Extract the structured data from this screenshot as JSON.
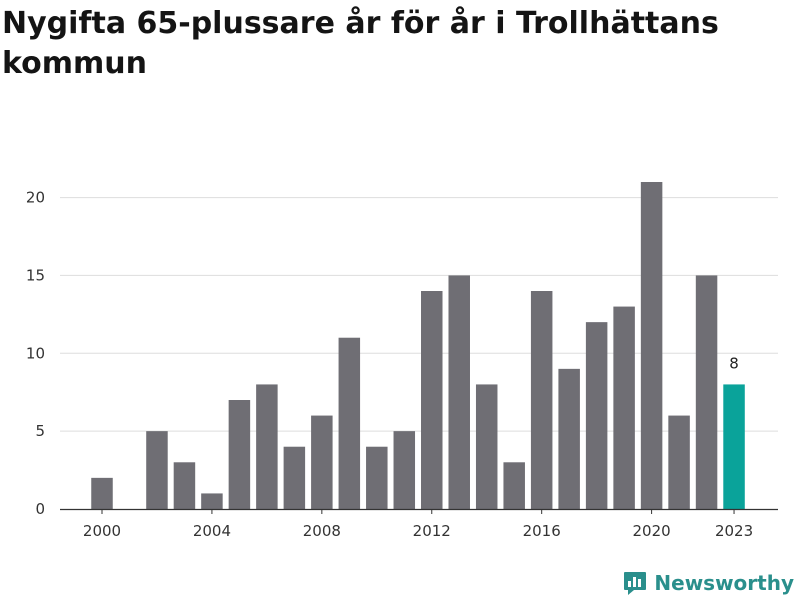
{
  "title": "Nygifta 65-plussare år för år i Trollhättans kommun",
  "brand": {
    "name": "Newsworthy",
    "logo_icon": "newsworthy-logo-icon",
    "color": "#2a8f8c"
  },
  "colors": {
    "bar": "#6f6e74",
    "highlight": "#0aa39a",
    "grid": "#dddddd",
    "axis": "#333333"
  },
  "chart_data": {
    "type": "bar",
    "title": "Nygifta 65-plussare år för år i Trollhättans kommun",
    "xlabel": "",
    "ylabel": "",
    "categories": [
      2000,
      2001,
      2002,
      2003,
      2004,
      2005,
      2006,
      2007,
      2008,
      2009,
      2010,
      2011,
      2012,
      2013,
      2014,
      2015,
      2016,
      2017,
      2018,
      2019,
      2020,
      2021,
      2022,
      2023
    ],
    "values": [
      2,
      0,
      5,
      3,
      1,
      7,
      8,
      4,
      6,
      11,
      4,
      5,
      14,
      15,
      8,
      3,
      14,
      9,
      12,
      13,
      21,
      6,
      15,
      8
    ],
    "highlight_category": 2023,
    "highlight_label": "8",
    "ylim": [
      0,
      21
    ],
    "yticks": [
      0,
      5,
      10,
      15,
      20
    ],
    "xticks": [
      2000,
      2004,
      2008,
      2012,
      2016,
      2020,
      2023
    ],
    "grid": "horizontal",
    "legend": "none"
  }
}
